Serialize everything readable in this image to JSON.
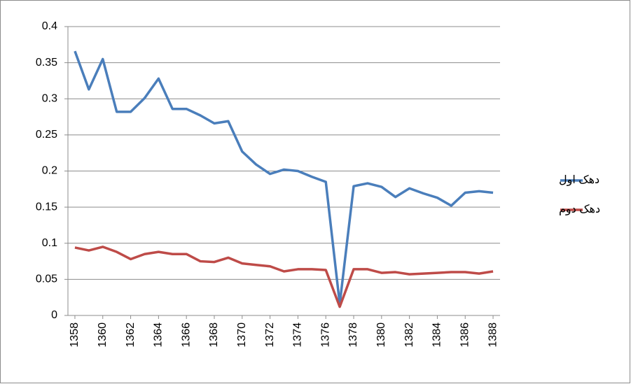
{
  "chart_data": {
    "type": "line",
    "x": [
      1358,
      1359,
      1360,
      1361,
      1362,
      1363,
      1364,
      1365,
      1366,
      1367,
      1368,
      1369,
      1370,
      1371,
      1372,
      1373,
      1374,
      1375,
      1376,
      1377,
      1378,
      1379,
      1380,
      1381,
      1382,
      1383,
      1384,
      1385,
      1386,
      1387,
      1388
    ],
    "xlim": [
      1357.5,
      1388.5
    ],
    "xticks": [
      1358,
      1360,
      1362,
      1364,
      1366,
      1368,
      1370,
      1372,
      1374,
      1376,
      1378,
      1380,
      1382,
      1384,
      1386,
      1388
    ],
    "ylim": [
      0,
      0.4
    ],
    "yticks": [
      0,
      0.05,
      0.1,
      0.15,
      0.2,
      0.25,
      0.3,
      0.35,
      0.4
    ],
    "grid": true,
    "legend": "right",
    "series": [
      {
        "name": "دهک اول",
        "color": "#4a7ebb",
        "values": [
          0.366,
          0.313,
          0.355,
          0.282,
          0.282,
          0.301,
          0.328,
          0.286,
          0.286,
          0.277,
          0.266,
          0.269,
          0.227,
          0.209,
          0.196,
          0.202,
          0.2,
          0.192,
          0.185,
          0.016,
          0.179,
          0.183,
          0.178,
          0.164,
          0.176,
          0.169,
          0.163,
          0.152,
          0.17,
          0.172,
          0.17
        ]
      },
      {
        "name": "دهک دوم",
        "color": "#be4b48",
        "values": [
          0.094,
          0.09,
          0.095,
          0.088,
          0.078,
          0.085,
          0.088,
          0.085,
          0.085,
          0.075,
          0.074,
          0.08,
          0.072,
          0.07,
          0.068,
          0.061,
          0.064,
          0.064,
          0.063,
          0.012,
          0.064,
          0.064,
          0.059,
          0.06,
          0.057,
          0.058,
          0.059,
          0.06,
          0.06,
          0.058,
          0.061
        ]
      }
    ]
  }
}
